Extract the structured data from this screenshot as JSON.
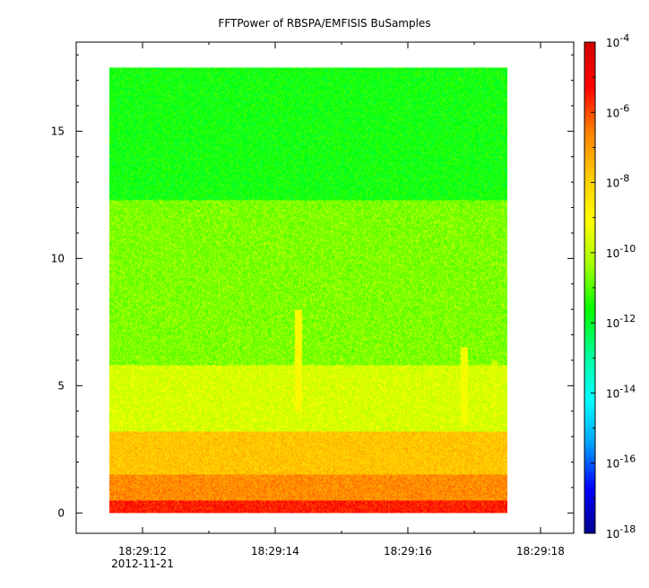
{
  "chart_data": {
    "type": "heatmap",
    "title": "FFTPower of RBSPA/EMFISIS  BuSamples",
    "xlabel": "",
    "ylabel": "",
    "x_ticks": [
      "18:29:12",
      "18:29:14",
      "18:29:16",
      "18:29:18"
    ],
    "x_date_label": "2012-11-21",
    "xlim_seconds": [
      11.0,
      18.5
    ],
    "data_x_range_seconds": [
      11.5,
      17.5
    ],
    "ylim": [
      -0.8,
      18.5
    ],
    "data_y_range": [
      0,
      17.5
    ],
    "y_ticks": [
      0,
      5,
      10,
      15
    ],
    "colorbar": {
      "scale": "log",
      "range": [
        1e-18,
        0.0001
      ],
      "tick_labels": [
        {
          "base": "10",
          "exp": "-4"
        },
        {
          "base": "10",
          "exp": "-6"
        },
        {
          "base": "10",
          "exp": "-8"
        },
        {
          "base": "10",
          "exp": "-10"
        },
        {
          "base": "10",
          "exp": "-12"
        },
        {
          "base": "10",
          "exp": "-14"
        },
        {
          "base": "10",
          "exp": "-16"
        },
        {
          "base": "10",
          "exp": "-18"
        }
      ],
      "tick_values_log10": [
        -4,
        -6,
        -8,
        -10,
        -12,
        -14,
        -16,
        -18
      ],
      "palette": [
        "#00008b",
        "#0000ff",
        "#00a0ff",
        "#00ffff",
        "#00ff99",
        "#00ff00",
        "#a0ff00",
        "#ffff00",
        "#ffc800",
        "#ff8000",
        "#ff0000",
        "#d00000"
      ]
    },
    "bands": [
      {
        "y_from": 0.0,
        "y_to": 0.5,
        "log10_power": -5.5
      },
      {
        "y_from": 0.5,
        "y_to": 1.5,
        "log10_power": -6.8
      },
      {
        "y_from": 1.5,
        "y_to": 3.2,
        "log10_power": -7.8
      },
      {
        "y_from": 3.2,
        "y_to": 5.8,
        "log10_power": -9.6
      },
      {
        "y_from": 5.8,
        "y_to": 12.3,
        "log10_power": -10.6
      },
      {
        "y_from": 12.3,
        "y_to": 17.5,
        "log10_power": -11.6
      }
    ],
    "features": [
      {
        "x_seconds": 14.35,
        "y_from": 4.0,
        "y_to": 8.0,
        "log10_power": -9.0
      },
      {
        "x_seconds": 16.85,
        "y_from": 3.5,
        "y_to": 6.5,
        "log10_power": -9.2
      },
      {
        "x_seconds": 17.3,
        "y_from": 4.5,
        "y_to": 6.0,
        "log10_power": -9.8
      }
    ]
  }
}
